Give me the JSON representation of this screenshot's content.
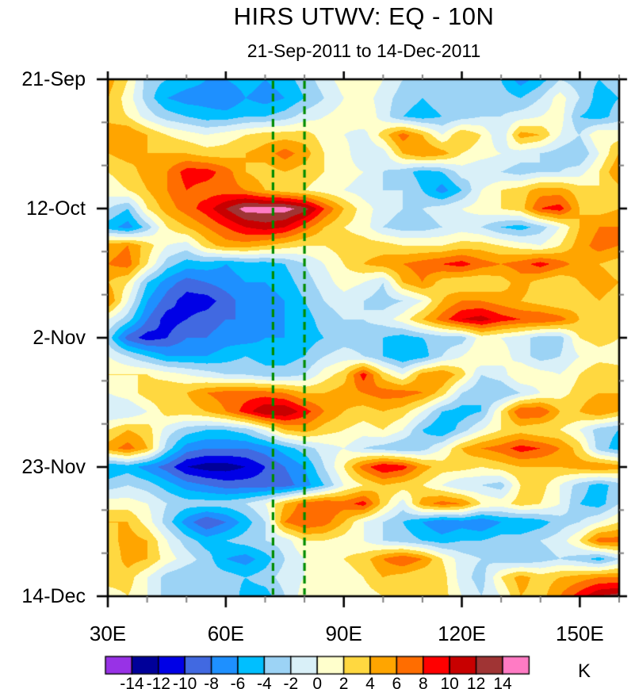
{
  "title": "HIRS UTWV: EQ - 10N",
  "subtitle": "21-Sep-2011 to 14-Dec-2011",
  "colorbar": {
    "unit": "K",
    "tick_labels": [
      "-14",
      "-12",
      "-10",
      "-8",
      "-6",
      "-4",
      "-2",
      "0",
      "2",
      "4",
      "6",
      "8",
      "10",
      "12",
      "14"
    ],
    "colors": [
      "#9832E6",
      "#000099",
      "#0000E6",
      "#4169E1",
      "#1E90FF",
      "#00BFFF",
      "#9CD3F5",
      "#D9F0F8",
      "#FFFFCC",
      "#FFD840",
      "#FFA500",
      "#FF6D00",
      "#FF0000",
      "#C80000",
      "#A03434",
      "#FF7BC4"
    ]
  },
  "chart_data": {
    "type": "heatmap",
    "title": "HIRS UTWV: EQ - 10N",
    "subtitle": "21-Sep-2011 to 14-Dec-2011",
    "units": "K",
    "xlim": [
      30,
      160
    ],
    "x_tick_labels": [
      "30E",
      "60E",
      "90E",
      "120E",
      "150E"
    ],
    "x_tick_lons": [
      30,
      60,
      90,
      120,
      150
    ],
    "x_minor_lons": [
      40,
      50,
      70,
      80,
      100,
      110,
      130,
      140,
      160
    ],
    "y_tick_labels": [
      "21-Sep",
      "12-Oct",
      "2-Nov",
      "23-Nov",
      "14-Dec"
    ],
    "y_tick_days": [
      0,
      21,
      42,
      63,
      84
    ],
    "y_minor_days": [
      7,
      14,
      28,
      35,
      49,
      56,
      70,
      77
    ],
    "ylim": [
      0,
      84
    ],
    "levels": [
      -14,
      -12,
      -10,
      -8,
      -6,
      -4,
      -2,
      0,
      2,
      4,
      6,
      8,
      10,
      12,
      14
    ],
    "legend_position": "bottom",
    "grid_on": false,
    "reference_lines": {
      "lons": [
        72,
        80
      ],
      "style": "dashed",
      "color": "#008C00"
    },
    "lons": [
      30,
      35,
      40,
      45,
      50,
      55,
      60,
      65,
      70,
      75,
      80,
      85,
      90,
      95,
      100,
      105,
      110,
      115,
      120,
      125,
      130,
      135,
      140,
      145,
      150,
      155,
      160
    ],
    "days": [
      0,
      3,
      6,
      9,
      12,
      15,
      18,
      21,
      24,
      27,
      30,
      33,
      36,
      39,
      42,
      45,
      48,
      51,
      54,
      57,
      60,
      63,
      66,
      69,
      72,
      75,
      78,
      81,
      84
    ],
    "grid": [
      [
        5,
        2,
        -3,
        -4,
        -5,
        -6,
        -6,
        -5,
        -6,
        -5,
        -3,
        -1,
        1,
        2,
        0,
        -2,
        -3,
        -2,
        -3,
        -3,
        -4,
        -7,
        -5,
        -2,
        -3,
        -4,
        -3
      ],
      [
        4,
        1,
        -3,
        -6,
        -7,
        -7,
        -8,
        -6,
        -7,
        -6,
        -4,
        -2,
        0,
        1,
        -1,
        -3,
        -4,
        -3,
        -2,
        -3,
        -3,
        -4,
        -2,
        1,
        -2,
        -5,
        -4
      ],
      [
        3,
        2,
        -1,
        -3,
        -4,
        -5,
        -5,
        -4,
        -4,
        -3,
        -1,
        0,
        1,
        2,
        -1,
        -4,
        -5,
        -4,
        -3,
        -2,
        -2,
        -1,
        0,
        1,
        -4,
        -5,
        -3
      ],
      [
        6,
        6,
        4,
        2,
        1,
        0,
        1,
        2,
        3,
        3,
        3,
        1,
        0,
        -1,
        3,
        7,
        4,
        0,
        4,
        2,
        -2,
        5,
        4,
        0,
        -2,
        2,
        1
      ],
      [
        4,
        5,
        4,
        4,
        4,
        3,
        3,
        4,
        5,
        7,
        5,
        2,
        1,
        -2,
        -1,
        4,
        6,
        5,
        2,
        1,
        0,
        -1,
        -2,
        -3,
        -4,
        0,
        4
      ],
      [
        2,
        3,
        5,
        6,
        9,
        9,
        7,
        4,
        3,
        4,
        3,
        2,
        1,
        0,
        -2,
        -3,
        -5,
        -4,
        -1,
        -2,
        -2,
        -3,
        -2,
        -2,
        -1,
        2,
        6
      ],
      [
        1,
        2,
        4,
        6,
        8,
        7,
        7,
        6,
        4,
        3,
        2,
        1,
        0,
        -1,
        -2,
        -2,
        -4,
        -7,
        -4,
        0,
        2,
        3,
        5,
        5,
        3,
        2,
        3
      ],
      [
        -2,
        -4,
        2,
        5,
        7,
        9,
        12,
        15,
        15,
        15,
        13,
        8,
        4,
        1,
        -1,
        -2,
        -2,
        -1,
        0,
        1,
        2,
        3,
        8,
        9,
        4,
        3,
        4
      ],
      [
        -5,
        -7,
        -3,
        2,
        4,
        6,
        8,
        10,
        11,
        10,
        7,
        4,
        2,
        1,
        -2,
        -3,
        -3,
        -2,
        -1,
        -2,
        -4,
        -5,
        -3,
        0,
        4,
        6,
        6
      ],
      [
        5,
        6,
        3,
        0,
        -1,
        3,
        5,
        5,
        4,
        3,
        2,
        2,
        3,
        3,
        3,
        2,
        2,
        2,
        3,
        3,
        2,
        1,
        0,
        2,
        5,
        7,
        6
      ],
      [
        6,
        7,
        2,
        -3,
        -5,
        -5,
        -6,
        -5,
        -5,
        -4,
        -2,
        0,
        2,
        4,
        5,
        6,
        7,
        8,
        9,
        7,
        6,
        7,
        9,
        7,
        5,
        4,
        3
      ],
      [
        4,
        2,
        -4,
        -7,
        -9,
        -8,
        -7,
        -6,
        -6,
        -5,
        -3,
        -1,
        1,
        0,
        -2,
        4,
        6,
        3,
        2,
        2,
        3,
        5,
        3,
        2,
        4,
        5,
        4
      ],
      [
        6,
        0,
        -6,
        -9,
        -11,
        -11,
        -9,
        -7,
        -7,
        -6,
        -4,
        -2,
        -1,
        -2,
        -3,
        -2,
        0,
        4,
        6,
        6,
        5,
        4,
        3,
        2,
        3,
        4,
        3
      ],
      [
        0,
        -3,
        -8,
        -11,
        -10,
        -9,
        -8,
        -8,
        -7,
        -6,
        -5,
        -3,
        -2,
        -2,
        -1,
        1,
        4,
        7,
        10,
        11,
        9,
        8,
        8,
        7,
        4,
        3,
        2
      ],
      [
        -3,
        -9,
        -11,
        -10,
        -8,
        -8,
        -7,
        -7,
        -6,
        -6,
        -5,
        -4,
        -3,
        -3,
        -4,
        -5,
        -4,
        -3,
        -3,
        1,
        0,
        -1,
        -3,
        -3,
        2,
        3,
        2
      ],
      [
        0,
        -2,
        -4,
        -6,
        -6,
        -6,
        -5,
        -4,
        -5,
        -5,
        -4,
        -2,
        -1,
        -2,
        -4,
        -6,
        -5,
        -2,
        0,
        2,
        1,
        -1,
        -3,
        -2,
        0,
        1,
        1
      ],
      [
        2,
        2,
        2,
        1,
        0,
        -1,
        -2,
        -2,
        -3,
        -3,
        -2,
        1,
        3,
        9,
        3,
        0,
        5,
        6,
        3,
        -2,
        -1,
        2,
        1,
        0,
        2,
        4,
        3
      ],
      [
        0,
        1,
        3,
        4,
        4,
        6,
        7,
        7,
        7,
        6,
        4,
        4,
        5,
        6,
        7,
        7,
        6,
        3,
        -2,
        -4,
        -4,
        -2,
        0,
        1,
        3,
        4,
        4
      ],
      [
        -2,
        -2,
        0,
        3,
        3,
        4,
        6,
        9,
        12,
        12,
        9,
        6,
        4,
        3,
        4,
        3,
        0,
        -4,
        -5,
        -4,
        2,
        8,
        8,
        4,
        4,
        6,
        4
      ],
      [
        2,
        4,
        3,
        -1,
        -3,
        -4,
        -4,
        -3,
        0,
        4,
        5,
        3,
        2,
        1,
        2,
        0,
        -4,
        -6,
        -3,
        0,
        2,
        3,
        2,
        2,
        0,
        -3,
        -4
      ],
      [
        5,
        7,
        4,
        -3,
        -7,
        -8,
        -8,
        -8,
        -7,
        -5,
        -3,
        -1,
        0,
        -2,
        -3,
        -4,
        -3,
        0,
        4,
        6,
        7,
        9,
        8,
        6,
        3,
        -3,
        -5
      ],
      [
        -6,
        -5,
        -7,
        -9,
        -12,
        -13,
        -13,
        -12,
        -10,
        -8,
        -6,
        -2,
        2,
        7,
        10,
        9,
        5,
        3,
        3,
        2,
        3,
        4,
        4,
        4,
        5,
        6,
        5
      ],
      [
        -3,
        -2,
        -3,
        -5,
        -7,
        -8,
        -9,
        -9,
        -9,
        -9,
        -7,
        -4,
        0,
        2,
        4,
        3,
        2,
        0,
        -2,
        -2,
        -3,
        2,
        3,
        0,
        -3,
        -5,
        -3
      ],
      [
        1,
        1,
        0,
        -2,
        -3,
        -3,
        -3,
        -2,
        0,
        4,
        7,
        8,
        7,
        9,
        3,
        -1,
        5,
        7,
        6,
        2,
        1,
        3,
        2,
        0,
        -4,
        -5,
        -2
      ],
      [
        4,
        4,
        1,
        -3,
        -7,
        -10,
        -8,
        -5,
        -2,
        6,
        8,
        7,
        4,
        0,
        -2,
        -4,
        -6,
        -8,
        -7,
        -8,
        -6,
        -6,
        -5,
        -3,
        -2,
        0,
        2
      ],
      [
        3,
        5,
        4,
        0,
        -3,
        -5,
        -4,
        -3,
        -2,
        -1,
        2,
        2,
        1,
        0,
        -2,
        -3,
        -4,
        -5,
        -4,
        -4,
        -3,
        -3,
        -2,
        -1,
        2,
        7,
        7
      ],
      [
        2,
        5,
        4,
        1,
        -1,
        -3,
        -6,
        -7,
        -5,
        -2,
        0,
        1,
        2,
        3,
        6,
        8,
        6,
        2,
        -1,
        -2,
        -3,
        -4,
        -3,
        -2,
        -3,
        -5,
        -2
      ],
      [
        3,
        3,
        0,
        -3,
        -4,
        -3,
        -3,
        -4,
        -3,
        -1,
        0,
        1,
        1,
        2,
        4,
        3,
        2,
        3,
        -1,
        -3,
        2,
        5,
        3,
        4,
        5,
        6,
        6
      ],
      [
        1,
        2,
        0,
        -3,
        -4,
        -2,
        -2,
        -5,
        -5,
        -2,
        1,
        2,
        2,
        1,
        2,
        3,
        3,
        3,
        0,
        -2,
        0,
        4,
        3,
        6,
        9,
        12,
        13
      ]
    ]
  }
}
